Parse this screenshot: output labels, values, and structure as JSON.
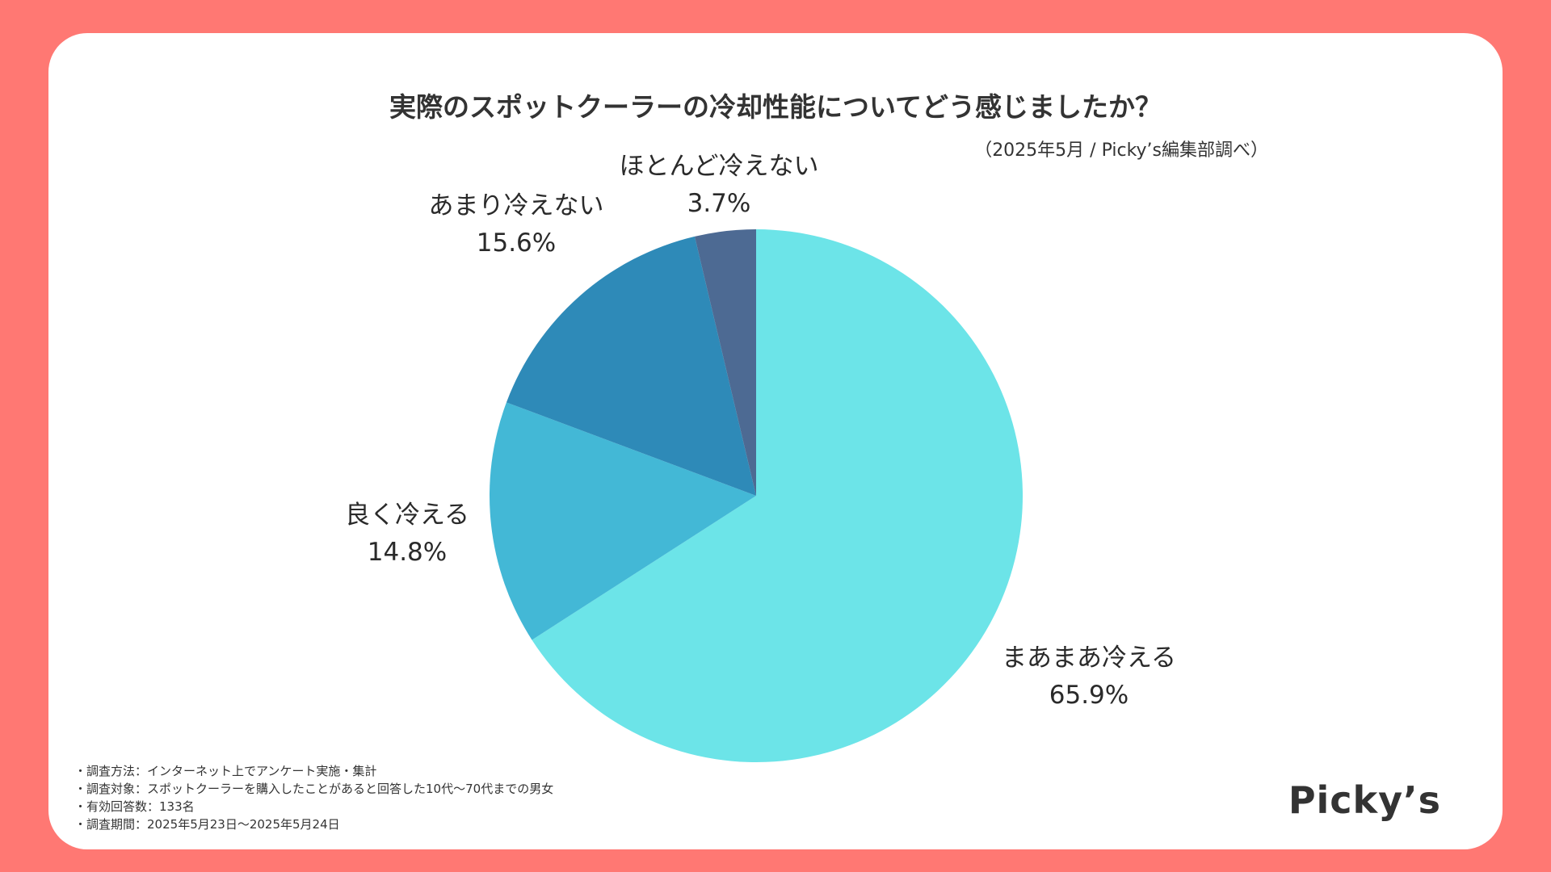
{
  "chart_data": {
    "type": "pie",
    "title": "実際のスポットクーラーの冷却性能についてどう感じましたか？",
    "source_note": "（2025年5月 / Picky’s編集部調べ）",
    "slices": [
      {
        "label": "まあまあ冷える",
        "value": 65.9,
        "value_label": "65.9%",
        "color": "#6ce4e8"
      },
      {
        "label": "良く冷える",
        "value": 14.8,
        "value_label": "14.8%",
        "color": "#43b8d6"
      },
      {
        "label": "あまり冷えない",
        "value": 15.6,
        "value_label": "15.6%",
        "color": "#2e8ab8"
      },
      {
        "label": "ほとんど冷えない",
        "value": 3.7,
        "value_label": "3.7%",
        "color": "#4d6a93"
      }
    ],
    "start_angle_deg": 0,
    "direction": "clockwise"
  },
  "notes": [
    "調査方法：インターネット上でアンケート実施・集計",
    "調査対象：スポットクーラーを購入したことがあると回答した10代〜70代までの男女",
    "有効回答数：133名",
    "調査期間：2025年5月23日〜2025年5月24日"
  ],
  "brand": {
    "logo_text": "Picky’s"
  },
  "colors": {
    "frame": "#ff7873",
    "card": "#ffffff",
    "text": "#333333"
  }
}
